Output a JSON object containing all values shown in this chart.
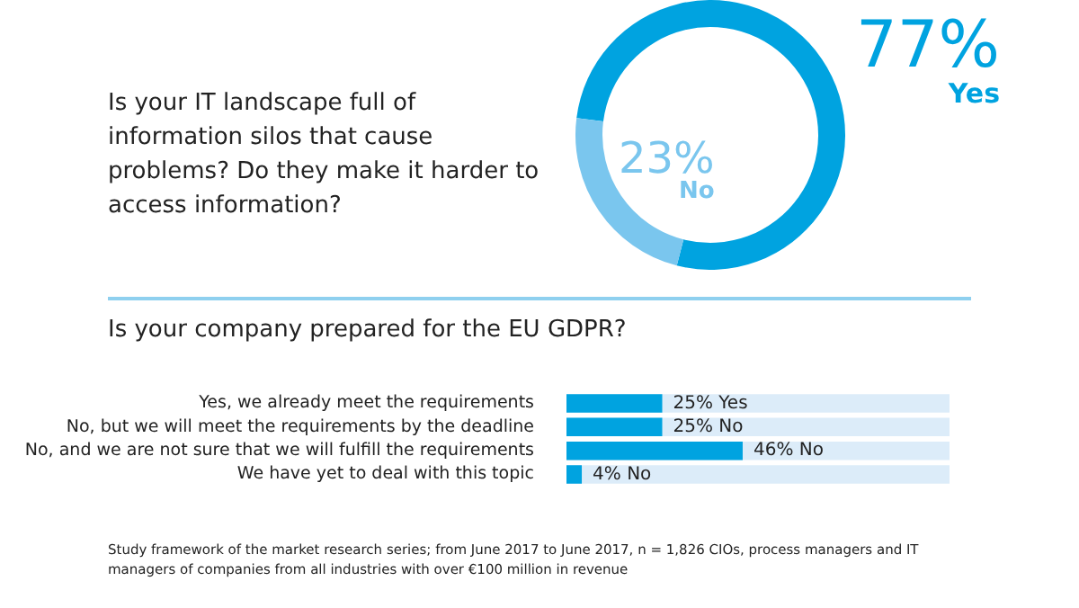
{
  "chart_data": [
    {
      "type": "donut",
      "title": "Is your IT landscape full of information silos that cause problems? Do they make it harder to access information?",
      "categories": [
        "Yes",
        "No"
      ],
      "values": [
        77,
        23
      ],
      "colors": [
        "#00a3e0",
        "#7ac6ee"
      ],
      "value_labels": [
        "77%",
        "23%"
      ]
    },
    {
      "type": "bar",
      "orientation": "horizontal",
      "title": "Is your company prepared for the EU GDPR?",
      "categories": [
        "Yes, we already meet the requirements",
        "No, but we will meet the requirements by the deadline",
        "No, and we are not sure that we will fulfill the requirements",
        "We have yet to deal with this topic"
      ],
      "values": [
        25,
        25,
        46,
        4
      ],
      "color": "#00a3e0",
      "xlim": [
        0,
        100
      ],
      "tick_labels": "y",
      "value_labels": [
        "25% Yes",
        "25% No",
        "46% No",
        "4% No"
      ],
      "annotations": [
        "Study framework of the market research series; from June 2017 to June 2017, n = 1,826 CIOs, process managers and IT managers of companies from all industries with over €100 million in revenue"
      ]
    }
  ]
}
